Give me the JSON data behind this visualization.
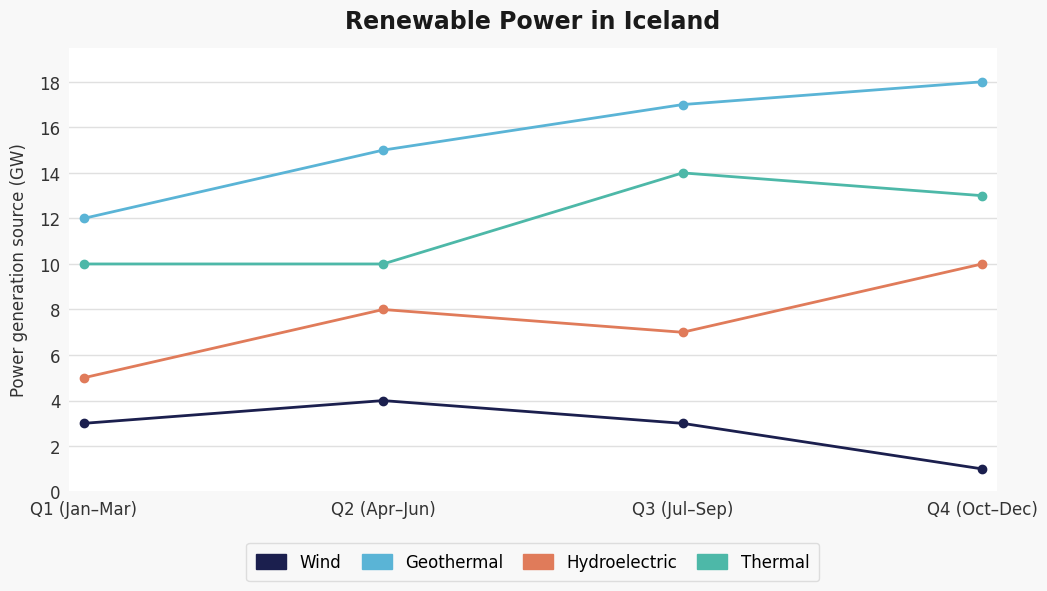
{
  "title": "Renewable Power in Iceland",
  "ylabel": "Power generation source (GW)",
  "categories": [
    "Q1 (Jan–Mar)",
    "Q2 (Apr–Jun)",
    "Q3 (Jul–Sep)",
    "Q4 (Oct–Dec)"
  ],
  "series": [
    {
      "name": "Wind",
      "values": [
        3,
        4,
        3,
        1
      ],
      "color": "#1b1f4e",
      "marker": "o"
    },
    {
      "name": "Geothermal",
      "values": [
        12,
        15,
        17,
        18
      ],
      "color": "#5ab4d6",
      "marker": "o"
    },
    {
      "name": "Hydroelectric",
      "values": [
        5,
        8,
        7,
        10
      ],
      "color": "#e07b5a",
      "marker": "o"
    },
    {
      "name": "Thermal",
      "values": [
        10,
        10,
        14,
        13
      ],
      "color": "#4db8a8",
      "marker": "o"
    }
  ],
  "ylim": [
    0,
    19.5
  ],
  "yticks": [
    0,
    2,
    4,
    6,
    8,
    10,
    12,
    14,
    16,
    18
  ],
  "plot_bg_color": "#ffffff",
  "fig_bg_color": "#f8f8f8",
  "grid_color": "#e0e0e0",
  "title_fontsize": 17,
  "label_fontsize": 12,
  "tick_fontsize": 12,
  "legend_fontsize": 12,
  "line_width": 2.0,
  "marker_size": 6
}
